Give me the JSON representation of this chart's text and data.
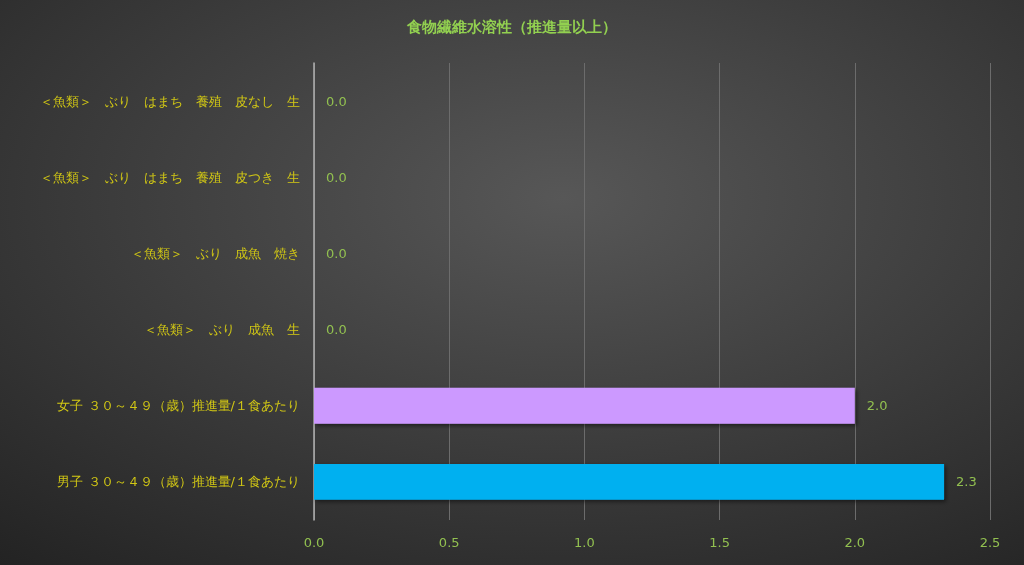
{
  "chart_data": {
    "type": "bar",
    "orientation": "horizontal",
    "title": "食物繊維水溶性（推進量以上）",
    "categories": [
      "＜魚類＞　ぶり　はまち　養殖　皮なし　生",
      "＜魚類＞　ぶり　はまち　養殖　皮つき　生",
      "＜魚類＞　ぶり　成魚　焼き",
      "＜魚類＞　ぶり　成魚　生",
      "女子 ３０～４９（歳）推進量/１食あたり",
      "男子 ３０～４９（歳）推進量/１食あたり"
    ],
    "values": [
      0,
      0,
      0,
      0,
      2.0,
      2.33
    ],
    "colors": [
      "#00b0f0",
      "#00b0f0",
      "#00b0f0",
      "#00b0f0",
      "#cc99ff",
      "#00b0f0"
    ],
    "value_labels": [
      "0.0",
      "0.0",
      "0.0",
      "0.0",
      "2.0",
      "2.3"
    ],
    "xlim": [
      0,
      2.5
    ],
    "xticks": [
      {
        "value": 0,
        "label": "0.0"
      },
      {
        "value": 0.5,
        "label": "0.5"
      },
      {
        "value": 1,
        "label": "1.0"
      },
      {
        "value": 1.5,
        "label": "1.5"
      },
      {
        "value": 2,
        "label": "2.0"
      },
      {
        "value": 2.5,
        "label": "2.5"
      }
    ],
    "grid": "x"
  }
}
